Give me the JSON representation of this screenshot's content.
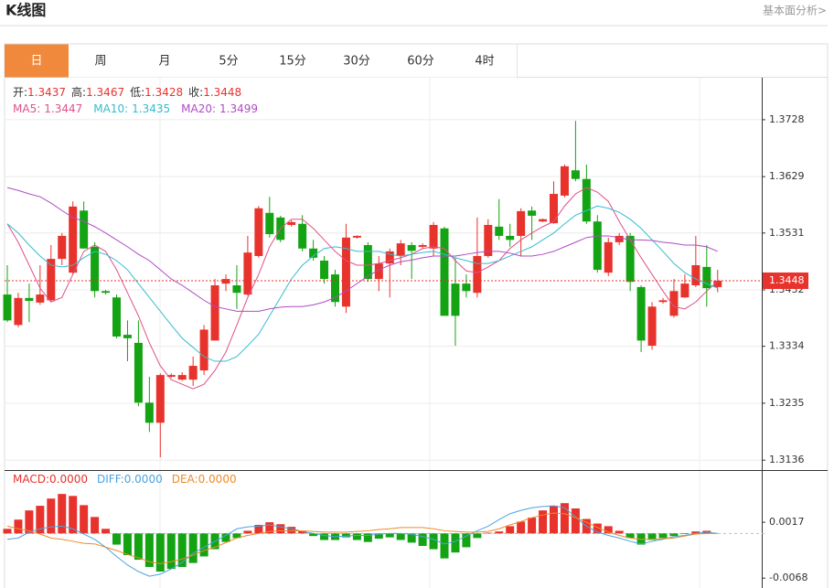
{
  "header": {
    "title": "K线图",
    "link": "基本面分析>"
  },
  "tabs": {
    "items": [
      "日",
      "周",
      "月",
      "5分",
      "15分",
      "30分",
      "60分",
      "4时"
    ],
    "active": "日"
  },
  "chart_data": [
    {
      "type": "candlestick",
      "ylim": [
        1.3122,
        1.3801
      ],
      "yticks": [
        1.3136,
        1.3235,
        1.3334,
        1.3432,
        1.3531,
        1.3629,
        1.3728
      ],
      "grid": true,
      "up_color": "#e8322c",
      "down_color": "#13a313",
      "ohlc_labels": [
        "开:",
        "高:",
        "低:",
        "收:"
      ],
      "open": [
        1.3424,
        1.3371,
        1.3418,
        1.341,
        1.3414,
        1.3486,
        1.3462,
        1.357,
        1.3507,
        1.343,
        1.3419,
        1.3354,
        1.334,
        1.3236,
        1.3201,
        1.3281,
        1.3276,
        1.3276,
        1.3292,
        1.3344,
        1.3443,
        1.344,
        1.3424,
        1.3491,
        1.3566,
        1.3558,
        1.3545,
        1.3547,
        1.3504,
        1.3483,
        1.3459,
        1.3403,
        1.3523,
        1.351,
        1.3451,
        1.3478,
        1.3491,
        1.351,
        1.3507,
        1.3504,
        1.3539,
        1.3443,
        1.3443,
        1.3427,
        1.3491,
        1.3542,
        1.3526,
        1.3526,
        1.357,
        1.3551,
        1.3548,
        1.3596,
        1.364,
        1.3625,
        1.3551,
        1.3462,
        1.3515,
        1.3526,
        1.3437,
        1.3335,
        1.3411,
        1.3387,
        1.3419,
        1.344,
        1.3472,
        1.3437
      ],
      "high": [
        1.3475,
        1.3427,
        1.3443,
        1.3475,
        1.351,
        1.3531,
        1.3586,
        1.3586,
        1.3515,
        1.3432,
        1.3424,
        1.3379,
        1.3379,
        1.3281,
        1.3287,
        1.3287,
        1.3289,
        1.3316,
        1.3371,
        1.3451,
        1.3459,
        1.3475,
        1.3526,
        1.3578,
        1.3594,
        1.3561,
        1.3553,
        1.3562,
        1.3519,
        1.3491,
        1.3467,
        1.3547,
        1.3527,
        1.3515,
        1.3491,
        1.3504,
        1.3519,
        1.3515,
        1.3513,
        1.355,
        1.3542,
        1.3488,
        1.3459,
        1.3558,
        1.3555,
        1.359,
        1.3547,
        1.3574,
        1.3577,
        1.3556,
        1.3621,
        1.365,
        1.3726,
        1.365,
        1.3562,
        1.3523,
        1.3531,
        1.3531,
        1.344,
        1.3411,
        1.3418,
        1.3451,
        1.3459,
        1.3526,
        1.351,
        1.3467
      ],
      "low": [
        1.3376,
        1.3367,
        1.3376,
        1.3406,
        1.3411,
        1.3475,
        1.3459,
        1.3504,
        1.3419,
        1.3424,
        1.3348,
        1.3308,
        1.323,
        1.3185,
        1.3141,
        1.3279,
        1.3274,
        1.3265,
        1.3284,
        1.3344,
        1.343,
        1.3399,
        1.3422,
        1.3488,
        1.3523,
        1.3515,
        1.3542,
        1.3499,
        1.3483,
        1.3443,
        1.3403,
        1.3392,
        1.3521,
        1.3446,
        1.343,
        1.3419,
        1.3475,
        1.3451,
        1.3504,
        1.3491,
        1.3387,
        1.3335,
        1.3419,
        1.3419,
        1.3488,
        1.3519,
        1.3507,
        1.3491,
        1.3519,
        1.355,
        1.3547,
        1.3593,
        1.3621,
        1.3547,
        1.3462,
        1.3456,
        1.351,
        1.343,
        1.3324,
        1.3328,
        1.3408,
        1.3384,
        1.3418,
        1.3437,
        1.3403,
        1.3428
      ],
      "close": [
        1.3379,
        1.3418,
        1.3413,
        1.3424,
        1.3486,
        1.3526,
        1.3577,
        1.3504,
        1.343,
        1.3427,
        1.3351,
        1.3348,
        1.3236,
        1.3201,
        1.3284,
        1.3284,
        1.3284,
        1.33,
        1.3363,
        1.344,
        1.3451,
        1.3427,
        1.3497,
        1.3574,
        1.3529,
        1.3519,
        1.355,
        1.3504,
        1.3488,
        1.3451,
        1.3411,
        1.3523,
        1.3526,
        1.3451,
        1.3478,
        1.3499,
        1.3513,
        1.35,
        1.351,
        1.3545,
        1.3387,
        1.3387,
        1.343,
        1.3491,
        1.3545,
        1.3526,
        1.3519,
        1.3569,
        1.3561,
        1.3555,
        1.3599,
        1.3647,
        1.3625,
        1.3551,
        1.3467,
        1.3515,
        1.3526,
        1.3446,
        1.3344,
        1.3403,
        1.3414,
        1.343,
        1.3443,
        1.3475,
        1.3435,
        1.3448
      ],
      "series": [
        {
          "name": "MA5:",
          "color": "#e0508a",
          "values": [
            1.3547,
            1.3515,
            1.3475,
            1.3435,
            1.3411,
            1.3419,
            1.3459,
            1.3499,
            1.351,
            1.3499,
            1.3467,
            1.3427,
            1.3387,
            1.334,
            1.33,
            1.3276,
            1.3268,
            1.326,
            1.3268,
            1.3292,
            1.3324,
            1.3371,
            1.3419,
            1.3459,
            1.3507,
            1.3539,
            1.3555,
            1.3555,
            1.3539,
            1.3519,
            1.3499,
            1.3483,
            1.3475,
            1.3475,
            1.3478,
            1.3483,
            1.3488,
            1.3494,
            1.3504,
            1.3507,
            1.3504,
            1.3483,
            1.3465,
            1.3462,
            1.3472,
            1.3483,
            1.3504,
            1.3519,
            1.3531,
            1.3542,
            1.3551,
            1.3578,
            1.3599,
            1.361,
            1.3602,
            1.3586,
            1.3551,
            1.3519,
            1.3488,
            1.3459,
            1.343,
            1.3403,
            1.3399,
            1.3411,
            1.343,
            1.3447
          ]
        },
        {
          "name": "MA10:",
          "color": "#35bcd0",
          "values": [
            1.3547,
            1.3531,
            1.351,
            1.3491,
            1.3475,
            1.3472,
            1.3475,
            1.3488,
            1.3499,
            1.3494,
            1.3483,
            1.3467,
            1.3443,
            1.3419,
            1.3395,
            1.3371,
            1.3348,
            1.3332,
            1.3316,
            1.3308,
            1.3308,
            1.3316,
            1.3335,
            1.3355,
            1.3387,
            1.3419,
            1.3451,
            1.3475,
            1.3491,
            1.3504,
            1.3507,
            1.3504,
            1.3499,
            1.3499,
            1.3499,
            1.3494,
            1.3491,
            1.3494,
            1.3497,
            1.3499,
            1.3494,
            1.3488,
            1.3483,
            1.3478,
            1.3478,
            1.3483,
            1.3491,
            1.3499,
            1.3507,
            1.3519,
            1.3531,
            1.3547,
            1.3562,
            1.357,
            1.3578,
            1.3574,
            1.3567,
            1.3555,
            1.3539,
            1.3519,
            1.3499,
            1.3478,
            1.3462,
            1.3451,
            1.3443,
            1.3435
          ]
        },
        {
          "name": "MA20:",
          "color": "#b04bc4",
          "values": [
            1.361,
            1.3605,
            1.3599,
            1.3594,
            1.3583,
            1.357,
            1.3558,
            1.3551,
            1.3542,
            1.3531,
            1.3519,
            1.3507,
            1.3494,
            1.3483,
            1.3467,
            1.3451,
            1.344,
            1.3427,
            1.3414,
            1.3403,
            1.3399,
            1.3395,
            1.3395,
            1.3395,
            1.3399,
            1.3402,
            1.3403,
            1.3403,
            1.3406,
            1.3411,
            1.3419,
            1.343,
            1.3443,
            1.3456,
            1.3467,
            1.3475,
            1.3481,
            1.3484,
            1.3488,
            1.3491,
            1.3491,
            1.3491,
            1.3494,
            1.3497,
            1.3499,
            1.3499,
            1.3496,
            1.3491,
            1.3491,
            1.3494,
            1.3499,
            1.3507,
            1.3515,
            1.3523,
            1.3526,
            1.3526,
            1.3523,
            1.3519,
            1.3519,
            1.3518,
            1.3515,
            1.3513,
            1.351,
            1.351,
            1.3507,
            1.3499
          ]
        }
      ]
    },
    {
      "type": "macd",
      "ylim": [
        -0.0083,
        0.0095
      ],
      "yticks": [
        0.0017,
        -0.0068
      ],
      "histogram": {
        "name": "MACD:",
        "value_label": "0.0000",
        "color": "#e8322c",
        "up_color": "#e8322c",
        "down_color": "#13a313",
        "values": [
          0.0007,
          0.0021,
          0.0035,
          0.0042,
          0.0053,
          0.006,
          0.0057,
          0.0043,
          0.0025,
          0.0007,
          -0.0017,
          -0.0033,
          -0.004,
          -0.0051,
          -0.0058,
          -0.0054,
          -0.0051,
          -0.0045,
          -0.0035,
          -0.0024,
          -0.0013,
          -0.0007,
          0.0004,
          0.0013,
          0.0017,
          0.0014,
          0.001,
          0.0004,
          -0.0004,
          -0.001,
          -0.001,
          -0.0006,
          -0.001,
          -0.0013,
          -0.0008,
          -0.0006,
          -0.001,
          -0.0014,
          -0.0019,
          -0.0024,
          -0.0038,
          -0.0029,
          -0.0021,
          -0.0007,
          0.0001,
          0.0003,
          0.0011,
          0.0018,
          0.0024,
          0.0035,
          0.0042,
          0.0046,
          0.0038,
          0.0022,
          0.0015,
          0.0011,
          0.0004,
          -0.0007,
          -0.0017,
          -0.001,
          -0.0007,
          -0.0004,
          -0.0001,
          0.0003,
          0.0004,
          0
        ]
      },
      "series": [
        {
          "name": "DIFF:",
          "value_label": "0.0000",
          "color": "#4aa3e0",
          "values": [
            -0.0009,
            -0.0007,
            0.0002,
            0.0007,
            0.001,
            0.0011,
            0.0007,
            -0.0001,
            -0.0009,
            -0.0021,
            -0.0035,
            -0.0048,
            -0.0058,
            -0.0065,
            -0.0062,
            -0.0054,
            -0.0044,
            -0.003,
            -0.0021,
            -0.0012,
            -0.0003,
            0.0007,
            0.001,
            0.0011,
            0.0013,
            0.001,
            0.0007,
            0.0003,
            0,
            -0.0003,
            -0.0005,
            -0.0004,
            -0.0003,
            -0.0003,
            -0.0001,
            0,
            0,
            -0.0001,
            -0.0005,
            -0.0009,
            -0.0016,
            -0.0012,
            -0.0004,
            0.0004,
            0.0011,
            0.0021,
            0.003,
            0.0035,
            0.0039,
            0.0041,
            0.0042,
            0.0039,
            0.0025,
            0.0011,
            0.0002,
            -0.0003,
            -0.0007,
            -0.0012,
            -0.0016,
            -0.0012,
            -0.0009,
            -0.0005,
            -0.0003,
            0,
            0.0002,
            0
          ]
        },
        {
          "name": "DEA:",
          "value_label": "0.0000",
          "color": "#ef8a25",
          "values": [
            0.0011,
            0.0007,
            0.0004,
            -0.0001,
            -0.0007,
            -0.0009,
            -0.0012,
            -0.0015,
            -0.0016,
            -0.0021,
            -0.0026,
            -0.0032,
            -0.0037,
            -0.0043,
            -0.0046,
            -0.0043,
            -0.0039,
            -0.0033,
            -0.0026,
            -0.0021,
            -0.0014,
            -0.0007,
            -0.0003,
            0,
            0.0003,
            0.0004,
            0.0004,
            0.0004,
            0.0003,
            0.0002,
            0.0002,
            0.0002,
            0.0003,
            0.0004,
            0.0006,
            0.0007,
            0.0009,
            0.0009,
            0.0009,
            0.0007,
            0.0004,
            0.0003,
            0.0002,
            0.0002,
            0.0003,
            0.0007,
            0.0013,
            0.0018,
            0.0024,
            0.0028,
            0.0031,
            0.003,
            0.0024,
            0.0017,
            0.0009,
            0.0002,
            -0.0003,
            -0.0007,
            -0.0009,
            -0.0009,
            -0.0008,
            -0.0007,
            -0.0004,
            -0.0001,
            0,
            0
          ]
        }
      ]
    }
  ]
}
